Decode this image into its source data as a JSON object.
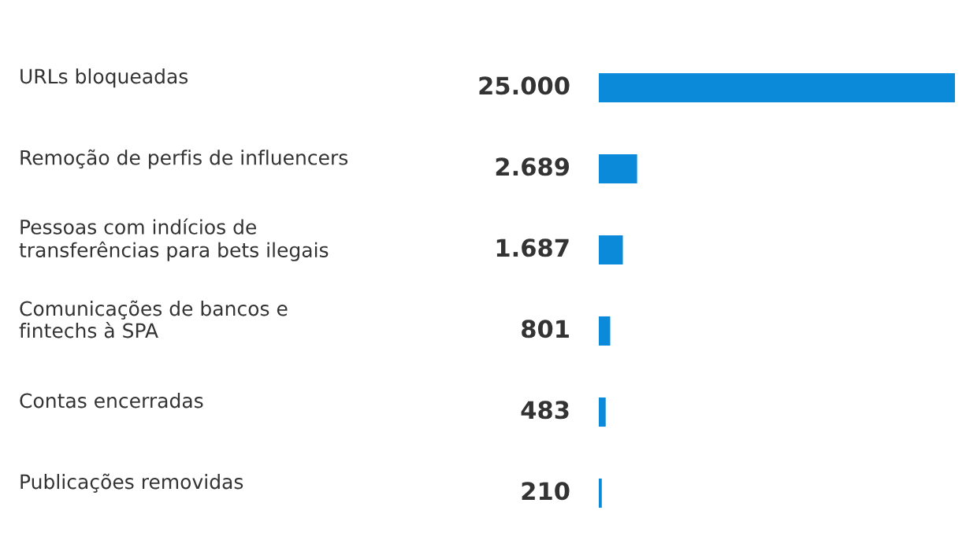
{
  "chart_data": {
    "type": "bar",
    "orientation": "horizontal",
    "categories": [
      "URLs bloqueadas",
      "Remoção de perfis de influencers",
      "Pessoas com indícios de\ntransferências para bets ilegais",
      "Comunicações de bancos e\nfintechs à SPA",
      "Contas encerradas",
      "Publicações removidas"
    ],
    "values": [
      25000,
      2689,
      1687,
      801,
      483,
      210
    ],
    "value_labels": [
      "25.000",
      "2.689",
      "1.687",
      "801",
      "483",
      "210"
    ],
    "color": "#0a8ad8"
  }
}
